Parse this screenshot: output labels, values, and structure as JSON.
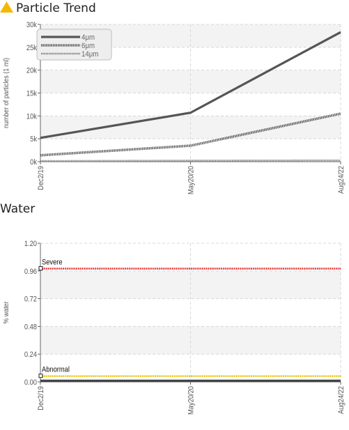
{
  "particle_section": {
    "title": "Particle Trend",
    "warning_icon": "warning-triangle-icon",
    "warning_color": "#f5b800"
  },
  "water_section": {
    "title": "Water"
  },
  "chart_data": [
    {
      "type": "line",
      "title": "Particle Trend",
      "ylabel": "number of particles (1 ml)",
      "xlabel": "",
      "categories": [
        "Dec2/19",
        "May20/20",
        "Aug24/22"
      ],
      "ylim": [
        0,
        30000
      ],
      "yticks": [
        0,
        5000,
        10000,
        15000,
        20000,
        25000,
        30000
      ],
      "ytick_labels": [
        "0k",
        "5k",
        "10k",
        "15k",
        "20k",
        "25k",
        "30k"
      ],
      "grid": true,
      "legend_position": "top-left",
      "series": [
        {
          "name": "4μm",
          "values": [
            5200,
            10700,
            28300
          ],
          "color": "#555555",
          "style": "solid"
        },
        {
          "name": "6μm",
          "values": [
            1400,
            3500,
            10500
          ],
          "color": "#555555",
          "style": "dotted-heavy"
        },
        {
          "name": "14μm",
          "values": [
            150,
            250,
            300
          ],
          "color": "#777777",
          "style": "dotted-light"
        }
      ]
    },
    {
      "type": "line",
      "title": "Water",
      "ylabel": "% water",
      "xlabel": "",
      "categories": [
        "Dec2/19",
        "May20/20",
        "Aug24/22"
      ],
      "ylim": [
        0,
        1.2
      ],
      "yticks": [
        0,
        0.24,
        0.48,
        0.72,
        0.96,
        1.2
      ],
      "ytick_labels": [
        "0.00",
        "0.24",
        "0.48",
        "0.72",
        "0.96",
        "1.20"
      ],
      "grid": true,
      "series": [
        {
          "name": "",
          "values": [
            0.01,
            0.01,
            0.01
          ],
          "color": "#444444",
          "style": "solid"
        }
      ],
      "thresholds": [
        {
          "label": "Severe",
          "value": 0.98,
          "color": "#e02020"
        },
        {
          "label": "Abnormal",
          "value": 0.05,
          "color": "#e8c000"
        }
      ]
    }
  ]
}
